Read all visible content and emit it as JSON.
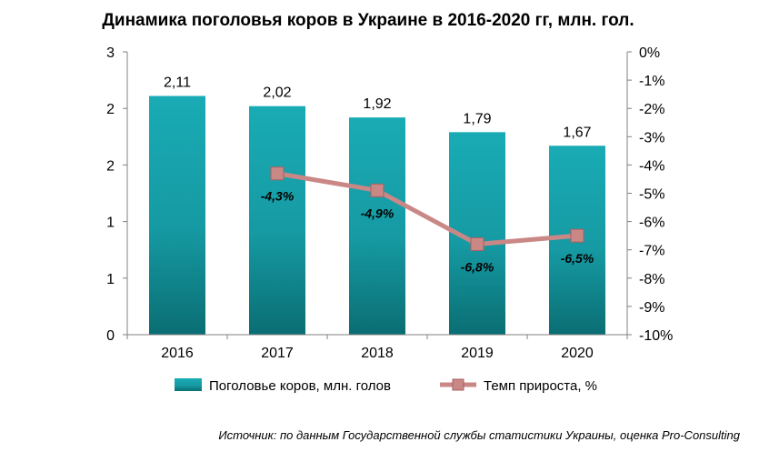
{
  "chart_data": {
    "title": "Динамика поголовья коров в Украине в 2016-2020 гг, млн. гол.",
    "categories": [
      "2016",
      "2017",
      "2018",
      "2019",
      "2020"
    ],
    "series": [
      {
        "name": "Поголовье коров, млн. голов",
        "type": "bar",
        "axis": "left",
        "color": "#1aa6b0",
        "values": [
          2.11,
          2.02,
          1.92,
          1.79,
          1.67
        ],
        "value_labels": [
          "2,11",
          "2,02",
          "1,92",
          "1,79",
          "1,67"
        ]
      },
      {
        "name": "Темп прироста, %",
        "type": "line",
        "axis": "right",
        "color": "#c98786",
        "values": [
          null,
          -4.3,
          -4.9,
          -6.8,
          -6.5
        ],
        "value_labels": [
          "",
          "-4,3%",
          "-4,9%",
          "-6,8%",
          "-6,5%"
        ]
      }
    ],
    "left_axis": {
      "range": [
        0,
        2.5
      ],
      "tick_labels": [
        "0",
        "1",
        "1",
        "2",
        "2",
        "3"
      ]
    },
    "right_axis": {
      "range": [
        -10,
        0
      ],
      "tick_labels": [
        "-10%",
        "-9%",
        "-8%",
        "-7%",
        "-6%",
        "-5%",
        "-4%",
        "-3%",
        "-2%",
        "-1%",
        "0%"
      ]
    },
    "grid": false,
    "legend_position": "bottom",
    "source": "Источник: по данным Государственной службы статистики Украины, оценка Pro-Consulting"
  }
}
